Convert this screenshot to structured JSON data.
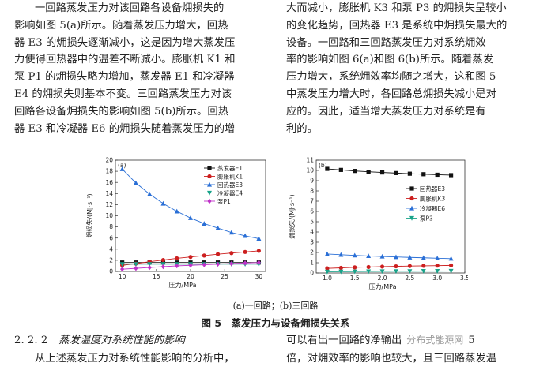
{
  "text": {
    "left_lines": [
      "一回路蒸发压力对该回路各设备㶲损失的",
      "影响如图 5(a)所示。随着蒸发压力增大，回热",
      "器 E3 的㶲损失逐渐减小，这是因为增大蒸发压",
      "力使得回热器中的温差不断减小。膨胀机 K1 和",
      "泵 P1 的㶲损失略为增加，蒸发器 E1 和冷凝器",
      "E4 的㶲损失则基本不变。三回路蒸发压力对该",
      "回路各设备㶲损失的影响如图 5(b)所示。回热",
      "器 E3 和冷凝器 E6 的㶲损失随着蒸发压力的增"
    ],
    "right_lines": [
      "大而减小，膨胀机 K3 和泵 P3 的㶲损失呈较小",
      "的变化趋势，回热器 E3 是系统中㶲损失最大的",
      "设备。一回路和三回路蒸发压力对系统㶲效",
      "率的影响如图 6(a)和图 6(b)所示。随着蒸发",
      "压力增大，系统㶲效率均随之增大，这和图 5",
      "中蒸发压力增大时，各回路总㶲损失减小是对",
      "应的。因此，适当增大蒸发压力对系统是有",
      "利的。"
    ],
    "subcaption": "(a)一回路；(b)三回路",
    "figcaption": "图 5　蒸发压力与设备㶲损失关系",
    "section_number": "2. 2. 2",
    "section_title": "蒸发温度对系统性能的影响",
    "bottom_left": "从上述蒸发压力对系统性能影响的分析中，",
    "bottom_right_1": "可以看出一回路的净输出",
    "bottom_right_1b": "5",
    "bottom_right_2": "倍，对㶲效率的影响也较大，且三回路蒸发温",
    "watermark": "分布式能源网"
  },
  "chart_data": [
    {
      "type": "line",
      "panel_label": "(a)",
      "xlabel": "压力/MPa",
      "ylabel": "㶲损失/(MJ·s⁻¹)",
      "xlim": [
        9,
        31
      ],
      "ylim": [
        0,
        20
      ],
      "xticks": [
        10,
        15,
        20,
        25,
        30
      ],
      "yticks": [
        0,
        2,
        4,
        6,
        8,
        10,
        12,
        14,
        16,
        18,
        20
      ],
      "legend_position": "top-right",
      "x": [
        10,
        12,
        14,
        16,
        18,
        20,
        22,
        24,
        26,
        28,
        30
      ],
      "series": [
        {
          "name": "蒸发器E1",
          "color": "#111111",
          "marker": "square",
          "values": [
            1.6,
            1.6,
            1.6,
            1.6,
            1.6,
            1.6,
            1.6,
            1.6,
            1.6,
            1.6,
            1.6
          ]
        },
        {
          "name": "膨胀机K1",
          "color": "#cc1f1f",
          "marker": "circle",
          "values": [
            1.1,
            1.4,
            1.75,
            2.05,
            2.35,
            2.6,
            2.85,
            3.1,
            3.3,
            3.5,
            3.7
          ]
        },
        {
          "name": "回热器E3",
          "color": "#2a6fd6",
          "marker": "triangle",
          "values": [
            18.4,
            15.9,
            13.9,
            12.2,
            10.8,
            9.6,
            8.6,
            7.8,
            7.0,
            6.4,
            5.9
          ]
        },
        {
          "name": "冷凝器E4",
          "color": "#19a38a",
          "marker": "triangle-down",
          "values": [
            1.3,
            1.3,
            1.3,
            1.3,
            1.3,
            1.3,
            1.3,
            1.3,
            1.3,
            1.3,
            1.3
          ]
        },
        {
          "name": "泵P1",
          "color": "#c032c9",
          "marker": "diamond",
          "values": [
            0.4,
            0.55,
            0.7,
            0.85,
            1.0,
            1.1,
            1.2,
            1.3,
            1.4,
            1.5,
            1.6
          ]
        }
      ]
    },
    {
      "type": "line",
      "panel_label": "(b)",
      "xlabel": "压力/MPa",
      "ylabel": "㶲损失/(MJ·s⁻¹)",
      "xlim": [
        0.8,
        3.5
      ],
      "ylim": [
        0,
        11
      ],
      "xticks": [
        1.0,
        1.5,
        2.0,
        2.5,
        3.0,
        3.5
      ],
      "yticks": [
        0,
        1,
        2,
        3,
        4,
        5,
        6,
        7,
        8,
        9,
        10,
        11
      ],
      "legend_position": "center-right",
      "x": [
        1.0,
        1.25,
        1.5,
        1.75,
        2.0,
        2.25,
        2.5,
        2.75,
        3.0,
        3.25
      ],
      "series": [
        {
          "name": "回热器E3",
          "color": "#111111",
          "marker": "square",
          "values": [
            10.15,
            10.05,
            9.95,
            9.87,
            9.8,
            9.74,
            9.68,
            9.63,
            9.58,
            9.54
          ]
        },
        {
          "name": "膨胀机K3",
          "color": "#cc1f1f",
          "marker": "circle",
          "values": [
            0.45,
            0.5,
            0.55,
            0.58,
            0.62,
            0.65,
            0.68,
            0.7,
            0.72,
            0.74
          ]
        },
        {
          "name": "冷凝器E6",
          "color": "#2a6fd6",
          "marker": "triangle",
          "values": [
            1.85,
            1.78,
            1.72,
            1.66,
            1.61,
            1.56,
            1.52,
            1.48,
            1.44,
            1.4
          ]
        },
        {
          "name": "泵P3",
          "color": "#19a38a",
          "marker": "triangle-down",
          "values": [
            0.12,
            0.13,
            0.14,
            0.15,
            0.16,
            0.17,
            0.17,
            0.18,
            0.18,
            0.19
          ]
        }
      ]
    }
  ]
}
